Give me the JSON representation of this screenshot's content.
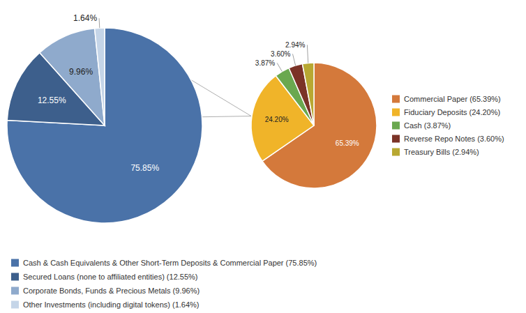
{
  "chart_data": [
    {
      "type": "pie",
      "categories": [
        "Cash & Cash Equivalents & Other Short-Term Deposits & Commercial Paper (75.85%)",
        "Secured Loans (none to affiliated entities) (12.55%)",
        "Corporate Bonds, Funds & Precious Metals (9.96%)",
        "Other Investments (including digital tokens) (1.64%)"
      ],
      "values": [
        75.85,
        12.55,
        9.96,
        1.64
      ],
      "value_labels": [
        "75.85%",
        "12.55%",
        "9.96%",
        "1.64%"
      ],
      "colors": [
        "#4a72a8",
        "#3d5f8c",
        "#8faacc",
        "#c5d5e8"
      ],
      "data_labels": true,
      "legend": "bottom"
    },
    {
      "type": "pie",
      "categories": [
        "Commercial Paper (65.39%)",
        "Fiduciary Deposits (24.20%)",
        "Cash (3.87%)",
        "Reverse Repo Notes (3.60%)",
        "Treasury Bills (2.94%)"
      ],
      "values": [
        65.39,
        24.2,
        3.87,
        3.6,
        2.94
      ],
      "value_labels": [
        "65.39%",
        "24.20%",
        "3.87%",
        "3.60%",
        "2.94%"
      ],
      "colors": [
        "#d4793b",
        "#f0b429",
        "#6aa84f",
        "#7b3327",
        "#b8a832"
      ],
      "data_labels": true,
      "legend": "right"
    }
  ]
}
